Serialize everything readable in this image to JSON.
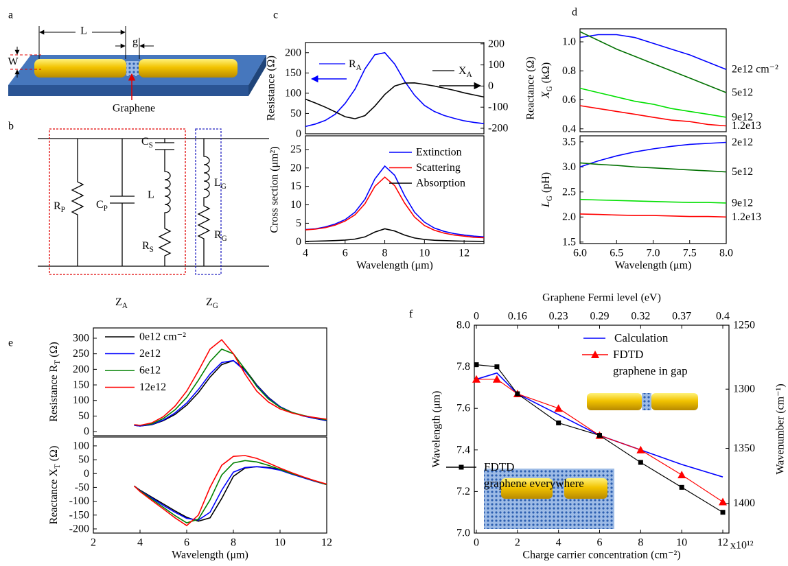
{
  "panel_a": {
    "label": "a",
    "L": "L",
    "g": "g",
    "W": "W",
    "graphene": "Graphene"
  },
  "panel_b": {
    "label": "b",
    "R_P": [
      "R",
      {
        "sub": "P"
      }
    ],
    "C_P": [
      "C",
      {
        "sub": "P"
      }
    ],
    "C_S": [
      "C",
      {
        "sub": "S"
      }
    ],
    "L": "L",
    "R_S": [
      "R",
      {
        "sub": "S"
      }
    ],
    "L_G": [
      "L",
      {
        "sub": "G"
      }
    ],
    "R_G": [
      "R",
      {
        "sub": "G"
      }
    ],
    "Z_A": [
      "Z",
      {
        "sub": "A"
      }
    ],
    "Z_G": [
      "Z",
      {
        "sub": "G"
      }
    ]
  },
  "chart_data": [
    {
      "type": "line",
      "panel_label": "c",
      "x": [
        4,
        4.5,
        5,
        5.5,
        6,
        6.5,
        7,
        7.5,
        8,
        8.5,
        9,
        9.5,
        10,
        10.5,
        11,
        11.5,
        12,
        12.5,
        13
      ],
      "xlim": [
        4,
        13
      ],
      "ylim": [
        0,
        225
      ],
      "yticks": [
        0,
        50,
        100,
        150,
        200
      ],
      "y_label": "Resistance (Ω)",
      "y_color": "#0000ff",
      "y2lim": [
        -226,
        206
      ],
      "y2ticks": [
        -200,
        -100,
        0,
        100,
        200
      ],
      "y2_label": "Reactance (Ω)",
      "series": [
        {
          "name": [
            "R",
            {
              "sub": "A"
            }
          ],
          "color": "#0000ff",
          "values": [
            18,
            24,
            33,
            48,
            75,
            110,
            160,
            195,
            200,
            172,
            130,
            95,
            70,
            55,
            45,
            38,
            32,
            28,
            25
          ]
        },
        {
          "name": [
            "X",
            {
              "sub": "A"
            }
          ],
          "color": "#000000",
          "axis": "y2",
          "values": [
            -62,
            -80,
            -100,
            -122,
            -145,
            -155,
            -140,
            -95,
            -40,
            0,
            14,
            15,
            8,
            0,
            -10,
            -20,
            -32,
            -42,
            -52
          ]
        }
      ]
    },
    {
      "type": "line",
      "x": [
        4,
        4.5,
        5,
        5.5,
        6,
        6.5,
        7,
        7.5,
        8,
        8.5,
        9,
        9.5,
        10,
        10.5,
        11,
        11.5,
        12,
        12.5,
        13
      ],
      "xlim": [
        4,
        13
      ],
      "ylim": [
        -0.5,
        28.7
      ],
      "xticks": [
        4,
        6,
        8,
        10,
        12
      ],
      "yticks": [
        0,
        5,
        10,
        15,
        20,
        25
      ],
      "x_label": "Wavelength (μm)",
      "y_label": "Cross section (μm²)",
      "series": [
        {
          "name": "Extinction",
          "color": "#0000ff",
          "values": [
            3.3,
            3.5,
            4,
            4.8,
            6,
            8,
            11.5,
            17,
            20.5,
            18,
            12.5,
            8,
            5.3,
            3.7,
            2.8,
            2.2,
            1.8,
            1.5,
            1.3
          ]
        },
        {
          "name": "Scattering",
          "color": "#ff0000",
          "values": [
            3.2,
            3.4,
            3.8,
            4.5,
            5.6,
            7.3,
            10.3,
            15,
            17.5,
            15.2,
            10.5,
            6.7,
            4.4,
            3.1,
            2.3,
            1.8,
            1.5,
            1.2,
            1.1
          ]
        },
        {
          "name": "Absorption",
          "color": "#000000",
          "values": [
            0.1,
            0.15,
            0.2,
            0.3,
            0.45,
            0.7,
            1.3,
            2.6,
            3.5,
            2.9,
            1.8,
            1.0,
            0.6,
            0.4,
            0.3,
            0.2,
            0.15,
            0.12,
            0.1
          ]
        }
      ]
    },
    {
      "type": "line",
      "panel_label": "d",
      "x": [
        6,
        6.25,
        6.5,
        6.75,
        7,
        7.25,
        7.5,
        7.75,
        8
      ],
      "xlim": [
        6,
        8
      ],
      "ylim": [
        0.38,
        1.09
      ],
      "yticks": [
        0.4,
        0.6,
        0.8,
        {
          "value": 1,
          "label": "1.0"
        }
      ],
      "y_label": [
        {
          "italic": "X"
        },
        {
          "sub": "G"
        },
        " (kΩ)"
      ],
      "series": [
        {
          "name": "2e12 cm⁻²",
          "color": "#0000ff",
          "values": [
            1.03,
            1.05,
            1.05,
            1.03,
            0.99,
            0.95,
            0.91,
            0.86,
            0.81
          ]
        },
        {
          "name": "5e12",
          "color": "#007000",
          "values": [
            1.07,
            1.01,
            0.95,
            0.9,
            0.85,
            0.8,
            0.75,
            0.7,
            0.65
          ]
        },
        {
          "name": "9e12",
          "color": "#00e000",
          "values": [
            0.68,
            0.65,
            0.62,
            0.59,
            0.57,
            0.54,
            0.52,
            0.5,
            0.48
          ]
        },
        {
          "name": "1.2e13",
          "color": "#ff0000",
          "values": [
            0.56,
            0.54,
            0.52,
            0.5,
            0.48,
            0.46,
            0.45,
            0.43,
            0.42
          ]
        }
      ]
    },
    {
      "type": "line",
      "x": [
        6,
        6.25,
        6.5,
        6.75,
        7,
        7.25,
        7.5,
        7.75,
        8
      ],
      "xlim": [
        6,
        8
      ],
      "ylim": [
        1.47,
        3.62
      ],
      "xticks": [
        {
          "value": 6,
          "label": "6.0"
        },
        6.5,
        {
          "value": 7,
          "label": "7.0"
        },
        7.5,
        {
          "value": 8,
          "label": "8.0"
        }
      ],
      "yticks": [
        1.5,
        {
          "value": 2,
          "label": "2.0"
        },
        2.5,
        {
          "value": 3,
          "label": "3.0"
        },
        3.5
      ],
      "x_label": "Wavelength (μm)",
      "y_label": [
        {
          "italic": "L"
        },
        {
          "sub": "G"
        },
        " (pH)"
      ],
      "series": [
        {
          "name": "2e12",
          "color": "#0000ff",
          "values": [
            3.0,
            3.12,
            3.22,
            3.3,
            3.36,
            3.41,
            3.45,
            3.47,
            3.49
          ]
        },
        {
          "name": "5e12",
          "color": "#007000",
          "values": [
            3.08,
            3.05,
            3.03,
            3.0,
            2.98,
            2.96,
            2.94,
            2.92,
            2.9
          ]
        },
        {
          "name": "9e12",
          "color": "#00e000",
          "values": [
            2.35,
            2.34,
            2.33,
            2.32,
            2.31,
            2.3,
            2.29,
            2.29,
            2.28
          ]
        },
        {
          "name": "1.2e13",
          "color": "#ff0000",
          "values": [
            2.06,
            2.05,
            2.04,
            2.03,
            2.03,
            2.02,
            2.01,
            2.01,
            2.0
          ]
        }
      ]
    },
    {
      "type": "line",
      "panel_label": "e",
      "x": [
        3.75,
        4,
        4.5,
        5,
        5.5,
        6,
        6.5,
        7,
        7.5,
        8,
        8.5,
        9,
        9.5,
        10,
        10.5,
        11,
        11.5,
        12
      ],
      "xlim": [
        2,
        12
      ],
      "ylim": [
        -13,
        333
      ],
      "yticks": [
        0,
        50,
        100,
        150,
        200,
        250,
        300
      ],
      "y_label": [
        "Resistance R",
        {
          "sub": "T"
        },
        " (Ω)"
      ],
      "series": [
        {
          "name": "0e12 cm⁻²",
          "color": "#000000",
          "values": [
            20,
            18,
            22,
            35,
            55,
            85,
            125,
            175,
            215,
            228,
            200,
            150,
            110,
            80,
            62,
            50,
            42,
            35
          ]
        },
        {
          "name": "2e12",
          "color": "#0000ff",
          "values": [
            20,
            18,
            23,
            37,
            60,
            92,
            135,
            185,
            222,
            228,
            195,
            148,
            108,
            80,
            62,
            50,
            42,
            36
          ]
        },
        {
          "name": "6e12",
          "color": "#008000",
          "values": [
            22,
            20,
            25,
            42,
            70,
            110,
            165,
            225,
            265,
            250,
            200,
            145,
            105,
            78,
            62,
            52,
            44,
            38
          ]
        },
        {
          "name": "12e12",
          "color": "#ff0000",
          "values": [
            22,
            20,
            28,
            48,
            82,
            130,
            195,
            265,
            295,
            250,
            185,
            130,
            95,
            73,
            60,
            51,
            45,
            40
          ]
        }
      ]
    },
    {
      "type": "line",
      "x": [
        3.75,
        4,
        4.5,
        5,
        5.5,
        6,
        6.5,
        7,
        7.5,
        8,
        8.5,
        9,
        9.5,
        10,
        10.5,
        11,
        11.5,
        12
      ],
      "xlim": [
        2,
        12
      ],
      "ylim": [
        -215,
        132
      ],
      "xticks": [
        2,
        4,
        6,
        8,
        10,
        12
      ],
      "yticks": [
        -200,
        -150,
        -100,
        -50,
        0,
        50,
        100
      ],
      "x_label": "Wavelength (μm)",
      "y_label": [
        "Reactance X",
        {
          "sub": "T"
        },
        " (Ω)"
      ],
      "series": [
        {
          "name": "0e12",
          "color": "#000000",
          "values": [
            -45,
            -60,
            -85,
            -110,
            -135,
            -158,
            -172,
            -160,
            -90,
            -10,
            20,
            25,
            22,
            15,
            0,
            -15,
            -28,
            -40
          ]
        },
        {
          "name": "2e12",
          "color": "#0000ff",
          "values": [
            -45,
            -62,
            -88,
            -115,
            -140,
            -162,
            -168,
            -140,
            -60,
            5,
            22,
            25,
            20,
            12,
            -2,
            -15,
            -28,
            -40
          ]
        },
        {
          "name": "6e12",
          "color": "#008000",
          "values": [
            -45,
            -63,
            -92,
            -122,
            -152,
            -178,
            -165,
            -95,
            -5,
            38,
            47,
            42,
            30,
            15,
            0,
            -13,
            -27,
            -40
          ]
        },
        {
          "name": "12e12",
          "color": "#ff0000",
          "values": [
            -45,
            -65,
            -97,
            -128,
            -160,
            -188,
            -150,
            -50,
            30,
            62,
            65,
            55,
            38,
            20,
            3,
            -12,
            -26,
            -38
          ]
        }
      ]
    },
    {
      "type": "line",
      "panel_label": "f",
      "x": [
        0,
        1,
        2,
        4,
        6,
        8,
        10,
        12
      ],
      "xlim": [
        -0.1,
        12.3
      ],
      "ylim": [
        7.0,
        8.0
      ],
      "xticks": [
        0,
        2,
        4,
        6,
        8,
        10,
        12
      ],
      "x2ticks": [
        0,
        {
          "value": 2,
          "label": "0.16"
        },
        {
          "value": 4,
          "label": "0.23"
        },
        {
          "value": 6,
          "label": "0.29"
        },
        {
          "value": 8,
          "label": "0.32"
        },
        {
          "value": 10,
          "label": "0.37"
        },
        {
          "value": 12,
          "label": "0.4"
        }
      ],
      "yticks": [
        {
          "value": 7,
          "label": "7.0"
        },
        7.2,
        7.4,
        7.6,
        7.8,
        {
          "value": 8,
          "label": "8.0"
        }
      ],
      "y2lim": [
        1428.6,
        1250
      ],
      "y2scale": "reciprocal",
      "y2ticks": [
        1250,
        1300,
        1350,
        1400
      ],
      "x_label": "Charge carrier concentration (cm⁻²)",
      "x2_label": "Graphene Fermi level (eV)",
      "x_multiplier": "x10¹²",
      "y_label": "Wavelength (μm)",
      "y2_label": "Wavenumber (cm⁻¹)",
      "series": [
        {
          "name": "Calculation",
          "color": "#0000ff",
          "values": [
            7.74,
            7.77,
            7.67,
            7.57,
            7.47,
            7.4,
            7.33,
            7.27
          ]
        },
        {
          "name": "FDTD\ngraphene in gap",
          "color": "#ff0000",
          "marker": "triangle",
          "values": [
            7.74,
            7.74,
            7.67,
            7.6,
            7.47,
            7.4,
            7.28,
            7.15
          ]
        },
        {
          "name": "FDTD\ngraphene everywhere",
          "color": "#000000",
          "marker": "square",
          "values": [
            7.81,
            7.8,
            7.67,
            7.53,
            7.47,
            7.34,
            7.22,
            7.1
          ]
        }
      ]
    }
  ]
}
